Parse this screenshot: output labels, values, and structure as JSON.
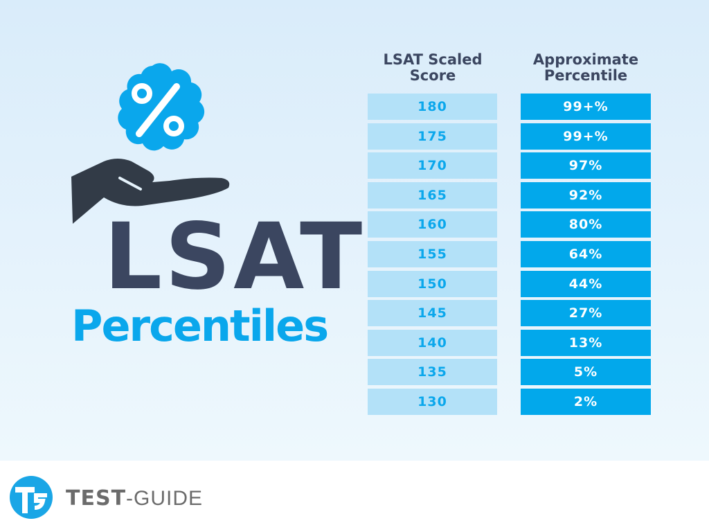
{
  "title": {
    "line1": "LSAT",
    "line2": "Percentiles"
  },
  "icon": "hand-holding-percent-badge-icon",
  "colors": {
    "dark": "#3b4660",
    "accent": "#0aa7ec",
    "score_bg": "#b3e1f8",
    "pct_bg": "#02a8eb"
  },
  "chart_data": {
    "type": "table",
    "columns": [
      "LSAT Scaled Score",
      "Approximate Percentile"
    ],
    "rows": [
      [
        "180",
        "99+%"
      ],
      [
        "175",
        "99+%"
      ],
      [
        "170",
        "97%"
      ],
      [
        "165",
        "92%"
      ],
      [
        "160",
        "80%"
      ],
      [
        "155",
        "64%"
      ],
      [
        "150",
        "44%"
      ],
      [
        "145",
        "27%"
      ],
      [
        "140",
        "13%"
      ],
      [
        "135",
        "5%"
      ],
      [
        "130",
        "2%"
      ]
    ]
  },
  "footer": {
    "brand_bold": "TEST",
    "brand_light": "-GUIDE",
    "logo": "test-guide-logo"
  }
}
